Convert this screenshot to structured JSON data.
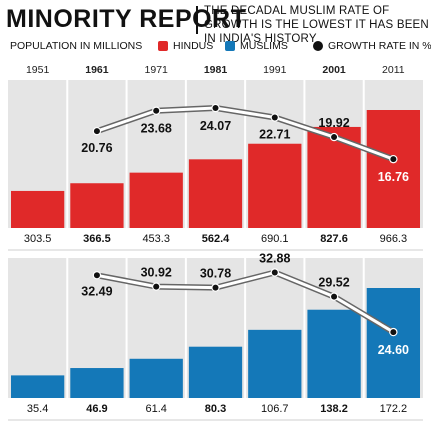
{
  "title": "MINORITY REPORT",
  "subtitle": "THE DECADAL MUSLIM RATE OF GROWTH IS THE LOWEST IT HAS BEEN IN INDIA'S HISTORY",
  "legend": {
    "population": "POPULATION IN MILLIONS",
    "hindus": "HINDUS",
    "muslims": "MUSLIMS",
    "growth": "GROWTH RATE IN %"
  },
  "colors": {
    "hindus": "#e02929",
    "muslims": "#1478b8",
    "panel_bg": "#e5e5e5",
    "growth_dot": "#111111"
  },
  "chart_data": {
    "type": "bar",
    "categories": [
      "1951",
      "1961",
      "1971",
      "1981",
      "1991",
      "2001",
      "2011"
    ],
    "bold_categories": [
      "1961",
      "1981",
      "2001"
    ],
    "series": [
      {
        "name": "HINDUS",
        "values": [
          303.5,
          366.5,
          453.3,
          562.4,
          690.1,
          827.6,
          966.3
        ],
        "labels": [
          "303.5",
          "366.5",
          "453.3",
          "562.4",
          "690.1",
          "827.6",
          "966.3"
        ]
      },
      {
        "name": "MUSLIMS",
        "values": [
          35.4,
          46.9,
          61.4,
          80.3,
          106.7,
          138.2,
          172.2
        ],
        "labels": [
          "35.4",
          "46.9",
          "61.4",
          "80.3",
          "106.7",
          "138.2",
          "172.2"
        ]
      }
    ],
    "growth_rates": [
      {
        "name": "HINDUS",
        "x": [
          "1961",
          "1971",
          "1981",
          "1991",
          "2001",
          "2011"
        ],
        "values": [
          20.76,
          23.68,
          24.07,
          22.71,
          19.92,
          16.76
        ],
        "labels": [
          "20.76",
          "23.68",
          "24.07",
          "22.71",
          "19.92",
          "16.76"
        ]
      },
      {
        "name": "MUSLIMS",
        "x": [
          "1961",
          "1971",
          "1981",
          "1991",
          "2001",
          "2011"
        ],
        "values": [
          32.49,
          30.92,
          30.78,
          32.88,
          29.52,
          24.6
        ],
        "labels": [
          "32.49",
          "30.92",
          "30.78",
          "32.88",
          "29.52",
          "24.60"
        ]
      }
    ]
  }
}
